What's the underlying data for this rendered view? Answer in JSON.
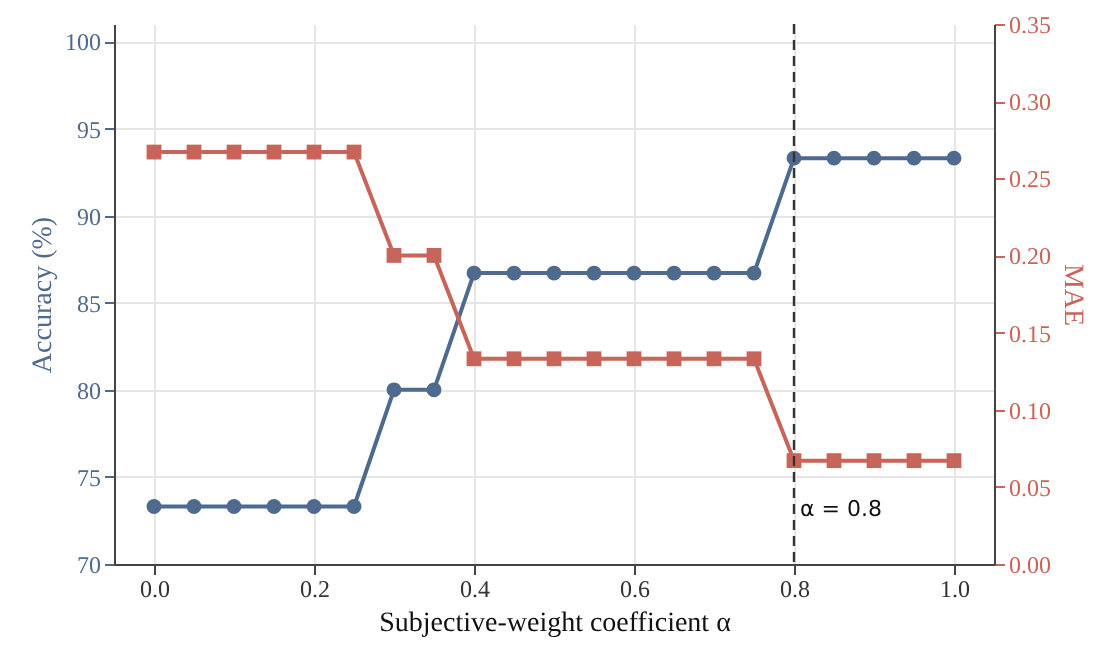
{
  "chart_data": {
    "type": "line",
    "xlabel": "Subjective-weight coefficient α",
    "ylabel": "Accuracy (%)",
    "y2label": "MAE",
    "x": [
      0,
      0.05,
      0.1,
      0.15,
      0.2,
      0.25,
      0.3,
      0.35,
      0.4,
      0.45,
      0.5,
      0.55,
      0.6,
      0.65,
      0.7,
      0.75,
      0.8,
      0.85,
      0.9,
      0.95,
      1.0
    ],
    "series": [
      {
        "color": "#4f6a8f",
        "marker": "circle",
        "values": [
          73.3,
          73.3,
          73.3,
          73.3,
          73.3,
          73.3,
          80,
          80,
          86.7,
          86.7,
          86.7,
          86.7,
          86.7,
          86.7,
          86.7,
          86.7,
          93.3,
          93.3,
          93.3,
          93.3,
          93.3
        ]
      },
      {
        "color": "#c8655a",
        "marker": "square",
        "axis": "y2",
        "values": [
          0.267,
          0.267,
          0.267,
          0.267,
          0.267,
          0.267,
          0.2,
          0.2,
          0.133,
          0.133,
          0.133,
          0.133,
          0.133,
          0.133,
          0.133,
          0.133,
          0.067,
          0.067,
          0.067,
          0.067,
          0.067
        ]
      }
    ],
    "xlim": [
      -0.05,
      1.05
    ],
    "xticks": [
      {
        "value": 0,
        "label": "0.0"
      },
      {
        "value": 0.2,
        "label": "0.2"
      },
      {
        "value": 0.4,
        "label": "0.4"
      },
      {
        "value": 0.6,
        "label": "0.6"
      },
      {
        "value": 0.8,
        "label": "0.8"
      },
      {
        "value": 1.0,
        "label": "1.0"
      }
    ],
    "ylim": [
      70,
      101
    ],
    "yticks": [
      70,
      75,
      80,
      85,
      90,
      95,
      100
    ],
    "y2lim": [
      0,
      0.35
    ],
    "y2ticks": [
      {
        "value": 0,
        "label": "0.00"
      },
      {
        "value": 0.05,
        "label": "0.05"
      },
      {
        "value": 0.1,
        "label": "0.10"
      },
      {
        "value": 0.15,
        "label": "0.15"
      },
      {
        "value": 0.2,
        "label": "0.20"
      },
      {
        "value": 0.25,
        "label": "0.25"
      },
      {
        "value": 0.3,
        "label": "0.30"
      },
      {
        "value": 0.35,
        "label": "0.35"
      }
    ],
    "ref_lines": [
      {
        "axis": "x",
        "value": 0.8,
        "label": "α = 0.8",
        "color": "#333333",
        "line_style": "dashed"
      }
    ],
    "grid": true,
    "line_style": "solid"
  }
}
